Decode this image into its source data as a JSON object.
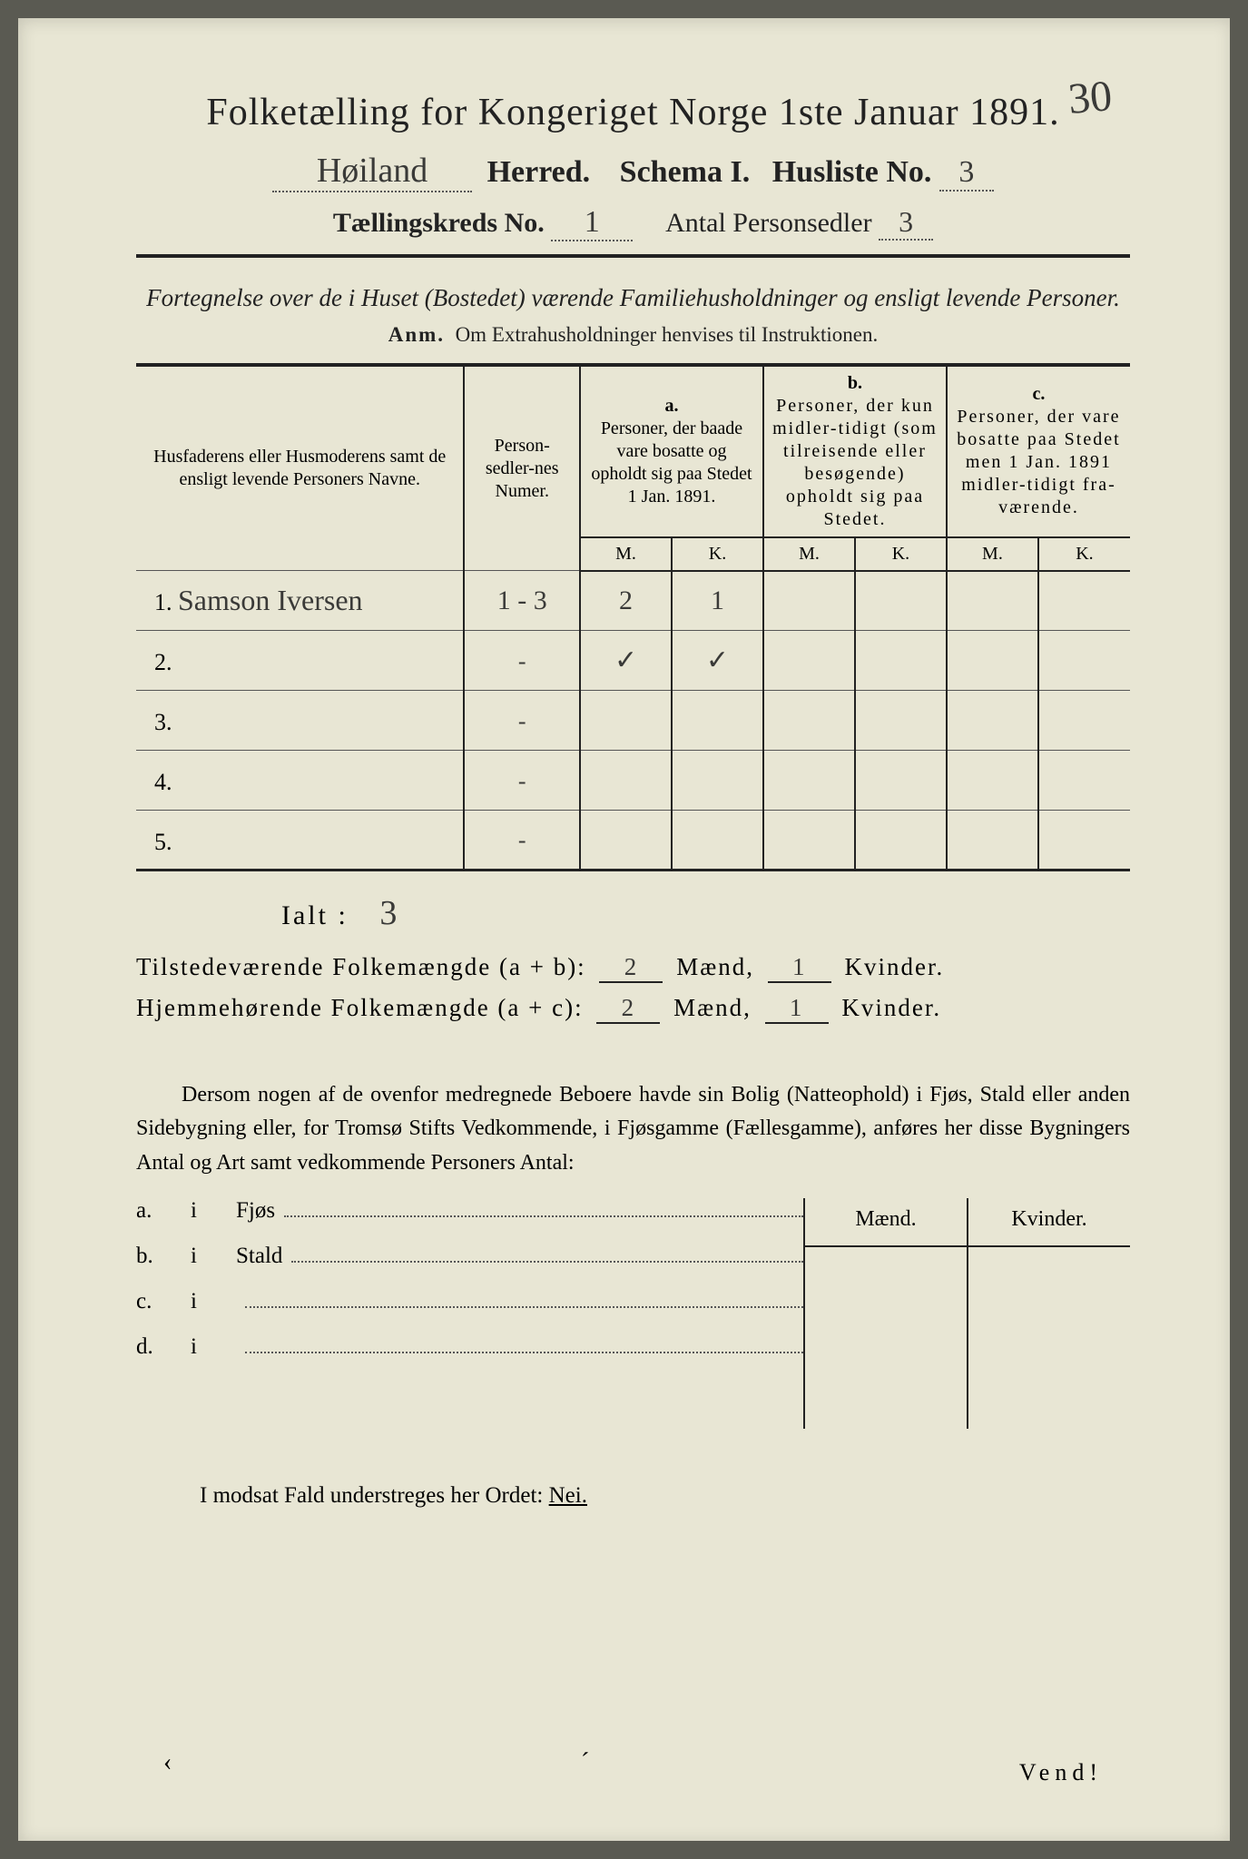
{
  "corner_annotation": "30",
  "header": {
    "title": "Folketælling for Kongeriget Norge 1ste Januar 1891.",
    "herred_hand": "Høiland",
    "herred_label": "Herred.",
    "schema_label": "Schema I.",
    "husliste_label": "Husliste No.",
    "husliste_val": "3",
    "kreds_label": "Tællingskreds No.",
    "kreds_val": "1",
    "sedler_label": "Antal Personsedler",
    "sedler_val": "3"
  },
  "subtitle": "Fortegnelse over de i Huset (Bostedet) værende Familiehusholdninger og ensligt levende Personer.",
  "anm_label": "Anm.",
  "anm_text": "Om Extrahusholdninger henvises til Instruktionen.",
  "table": {
    "col_name": "Husfaderens eller Husmoderens samt de ensligt levende Personers Navne.",
    "col_num": "Person-sedler-nes Numer.",
    "col_a_tag": "a.",
    "col_a": "Personer, der baade vare bosatte og opholdt sig paa Stedet 1 Jan. 1891.",
    "col_b_tag": "b.",
    "col_b": "Personer, der kun midler-tidigt (som tilreisende eller besøgende) opholdt sig paa Stedet.",
    "col_c_tag": "c.",
    "col_c": "Personer, der vare bosatte paa Stedet men 1 Jan. 1891 midler-tidigt fra-værende.",
    "m": "M.",
    "k": "K.",
    "rows": [
      {
        "n": "1.",
        "name": "Samson Iversen",
        "num": "1 - 3",
        "am": "2",
        "ak": "1",
        "bm": "",
        "bk": "",
        "cm": "",
        "ck": ""
      },
      {
        "n": "2.",
        "name": "",
        "num": "-",
        "am": "✓",
        "ak": "✓",
        "bm": "",
        "bk": "",
        "cm": "",
        "ck": ""
      },
      {
        "n": "3.",
        "name": "",
        "num": "-",
        "am": "",
        "ak": "",
        "bm": "",
        "bk": "",
        "cm": "",
        "ck": ""
      },
      {
        "n": "4.",
        "name": "",
        "num": "-",
        "am": "",
        "ak": "",
        "bm": "",
        "bk": "",
        "cm": "",
        "ck": ""
      },
      {
        "n": "5.",
        "name": "",
        "num": "-",
        "am": "",
        "ak": "",
        "bm": "",
        "bk": "",
        "cm": "",
        "ck": ""
      }
    ]
  },
  "ialt_label": "Ialt :",
  "ialt_val": "3",
  "summary": {
    "line1_label": "Tilstedeværende Folkemængde (a + b):",
    "line2_label": "Hjemmehørende Folkemængde (a + c):",
    "m1": "2",
    "k1": "1",
    "m2": "2",
    "k2": "1",
    "maend": "Mænd,",
    "kvinder": "Kvinder."
  },
  "paragraph": "Dersom nogen af de ovenfor medregnede Beboere havde sin Bolig (Natteophold) i Fjøs, Stald eller anden Sidebygning eller, for Tromsø Stifts Vedkommende, i Fjøsgamme (Fællesgamme), anføres her disse Bygningers Antal og Art samt vedkommende Personers Antal:",
  "lower": {
    "head_m": "Mænd.",
    "head_k": "Kvinder.",
    "rows": [
      {
        "lab": "a.",
        "i": "i",
        "word": "Fjøs"
      },
      {
        "lab": "b.",
        "i": "i",
        "word": "Stald"
      },
      {
        "lab": "c.",
        "i": "i",
        "word": ""
      },
      {
        "lab": "d.",
        "i": "i",
        "word": ""
      }
    ]
  },
  "modsat": "I modsat Fald understreges her Ordet:",
  "nei": "Nei.",
  "vend": "Vend!"
}
